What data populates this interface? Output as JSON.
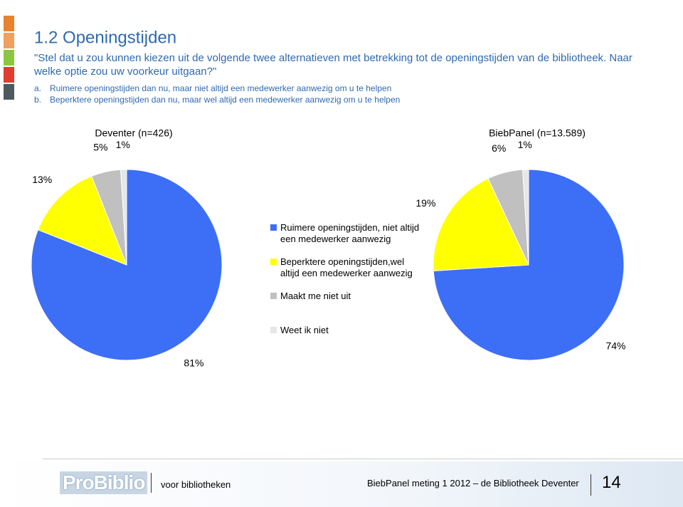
{
  "slide": {
    "title": "1.2 Openingstijden",
    "question": "\"Stel dat u zou kunnen kiezen uit de volgende twee alternatieven met betrekking tot de openingstijden van de bibliotheek. Naar welke optie zou uw voorkeur uitgaan?\"",
    "options": [
      {
        "letter": "a.",
        "text": "Ruimere openingstijden dan nu, maar niet altijd een medewerker aanwezig om u te helpen"
      },
      {
        "letter": "b.",
        "text": "Beperktere openingstijden dan nu, maar wel altijd een medewerker aanwezig om u te helpen"
      }
    ],
    "footer": {
      "logo": "ProBiblio",
      "tagline": "voor bibliotheken",
      "caption": "BiebPanel meting 1 2012 – de Bibliotheek Deventer",
      "page": "14"
    }
  },
  "chart_data": [
    {
      "type": "pie",
      "title": "Deventer (n=426)",
      "categories": [
        "Ruimere openingstijden, niet altijd een medewerker aanwezig",
        "Beperktere openingstijden,wel altijd een medewerker aanwezig",
        "Maakt me niet uit",
        "Weet ik niet"
      ],
      "colors": [
        "#3d6ef6",
        "#ffff00",
        "#c0c0c0",
        "#e6e6e6"
      ],
      "values": [
        81,
        13,
        5,
        1
      ],
      "value_labels": [
        "81%",
        "13%",
        "5%",
        "1%"
      ]
    },
    {
      "type": "pie",
      "title": "BiebPanel (n=13.589)",
      "values": [
        74,
        19,
        6,
        1
      ],
      "value_labels": [
        "74%",
        "19%",
        "6%",
        "1%"
      ]
    }
  ]
}
